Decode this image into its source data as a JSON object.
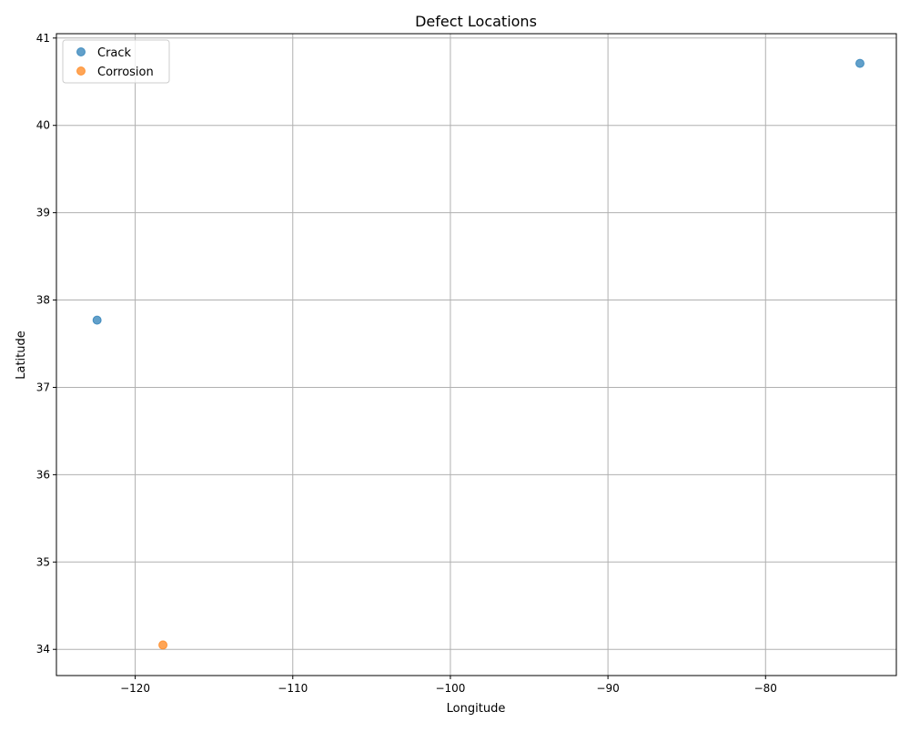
{
  "chart_data": {
    "type": "scatter",
    "title": "Defect Locations",
    "xlabel": "Longitude",
    "ylabel": "Latitude",
    "xlim": [
      -125,
      -71.7
    ],
    "ylim": [
      33.7,
      41.05
    ],
    "xticks": [
      -120,
      -110,
      -100,
      -90,
      -80
    ],
    "xtick_labels": [
      "−120",
      "−110",
      "−100",
      "−90",
      "−80"
    ],
    "yticks": [
      34,
      35,
      36,
      37,
      38,
      39,
      40,
      41
    ],
    "ytick_labels": [
      "34",
      "35",
      "36",
      "37",
      "38",
      "39",
      "40",
      "41"
    ],
    "grid": true,
    "legend_position": "upper-left",
    "series": [
      {
        "name": "Crack",
        "color": "#1f77b4",
        "points": [
          {
            "x": -122.42,
            "y": 37.77
          },
          {
            "x": -74.01,
            "y": 40.71
          }
        ]
      },
      {
        "name": "Corrosion",
        "color": "#ff7f0e",
        "points": [
          {
            "x": -118.24,
            "y": 34.05
          }
        ]
      }
    ]
  }
}
